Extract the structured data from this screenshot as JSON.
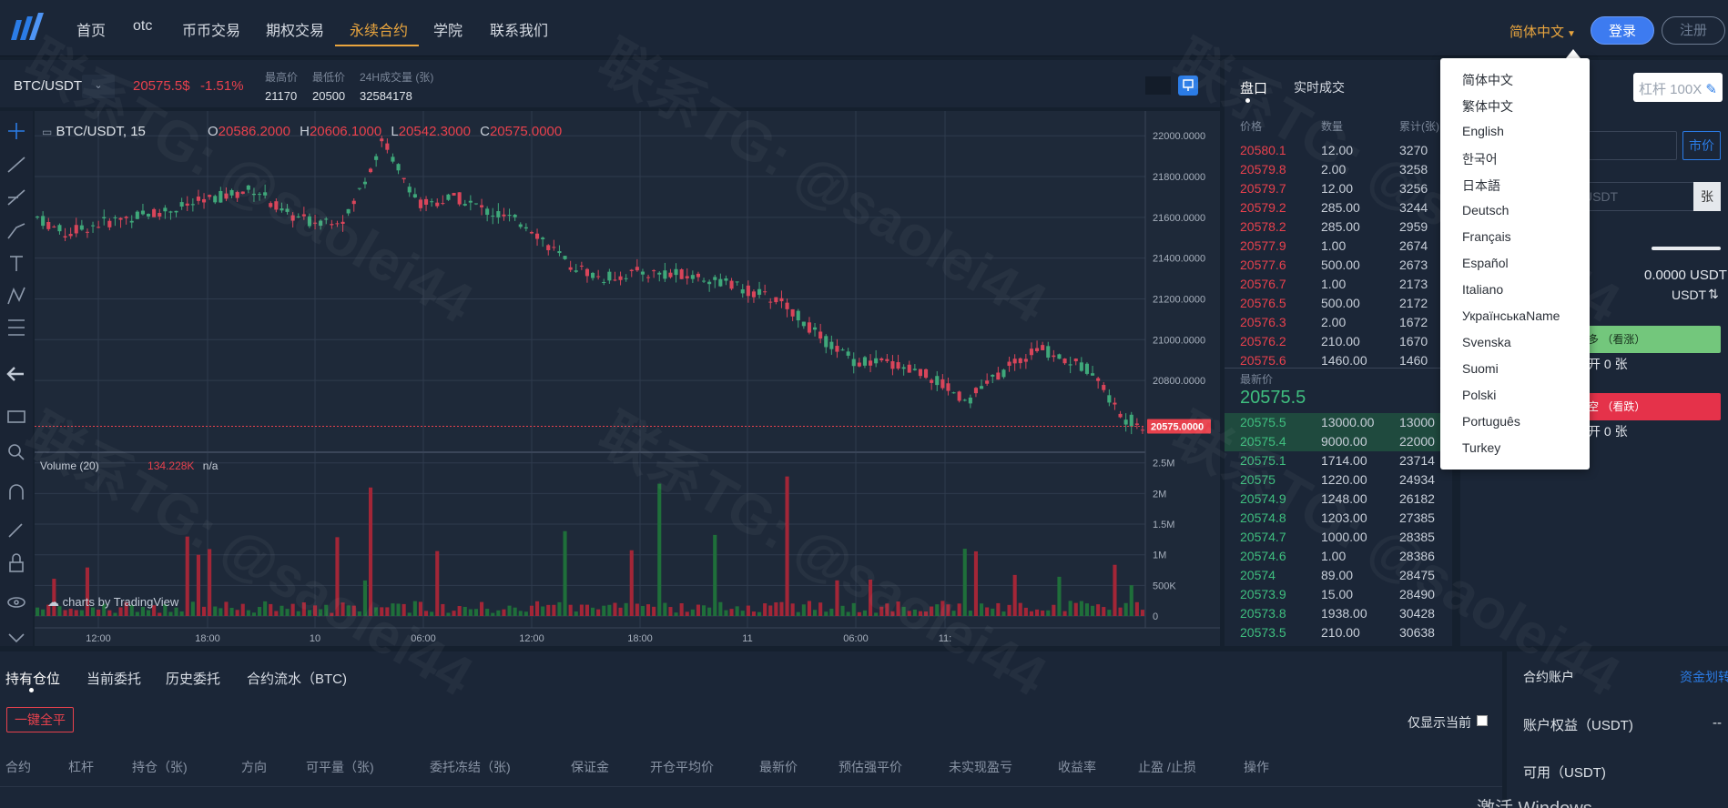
{
  "header": {
    "nav": [
      "首页",
      "otc",
      "币币交易",
      "期权交易",
      "永续合约",
      "学院",
      "联系我们"
    ],
    "active_nav": 4,
    "language": "简体中文",
    "login": "登录",
    "register": "注册"
  },
  "ticker": {
    "pair": "BTC/USDT",
    "last_price": "20575.5$",
    "change": "-1.51%",
    "high_label": "最高价",
    "high": "21170",
    "low_label": "最低价",
    "low": "20500",
    "vol_label": "24H成交量 (张)",
    "vol": "32584178"
  },
  "chart": {
    "legend_pair": "BTC/USDT, 15",
    "o_label": "O",
    "o": "20586.2000",
    "h_label": "H",
    "h": "20606.1000",
    "l_label": "L",
    "l": "20542.3000",
    "c_label": "C",
    "c": "20575.0000",
    "volume_label": "Volume (20)",
    "volume_val": "134.228K",
    "volume_na": "n/a",
    "price_ticks": [
      "22000.0000",
      "21800.0000",
      "21600.0000",
      "21400.0000",
      "21200.0000",
      "21000.0000",
      "20800.0000"
    ],
    "current_price_tag": "20575.0000",
    "vol_ticks": [
      "2.5M",
      "2M",
      "1.5M",
      "1M",
      "500K",
      "0"
    ],
    "time_ticks": [
      "12:00",
      "18:00",
      "10",
      "06:00",
      "12:00",
      "18:00",
      "11",
      "06:00",
      "11:"
    ],
    "watermark_logo": "charts by TradingView"
  },
  "orderbook": {
    "tab_book": "盘口",
    "tab_trades": "实时成交",
    "col_price": "价格",
    "col_qty": "数量",
    "col_total": "累计(张)",
    "asks": [
      [
        "20580.1",
        "12.00",
        "3270"
      ],
      [
        "20579.8",
        "2.00",
        "3258"
      ],
      [
        "20579.7",
        "12.00",
        "3256"
      ],
      [
        "20579.2",
        "285.00",
        "3244"
      ],
      [
        "20578.2",
        "285.00",
        "2959"
      ],
      [
        "20577.9",
        "1.00",
        "2674"
      ],
      [
        "20577.6",
        "500.00",
        "2673"
      ],
      [
        "20576.7",
        "1.00",
        "2173"
      ],
      [
        "20576.5",
        "500.00",
        "2172"
      ],
      [
        "20576.3",
        "2.00",
        "1672"
      ],
      [
        "20576.2",
        "210.00",
        "1670"
      ],
      [
        "20575.6",
        "1460.00",
        "1460"
      ]
    ],
    "latest_label": "最新价",
    "latest": "20575.5",
    "bids": [
      [
        "20575.5",
        "13000.00",
        "13000"
      ],
      [
        "20575.4",
        "9000.00",
        "22000"
      ],
      [
        "20575.1",
        "1714.00",
        "23714"
      ],
      [
        "20575",
        "1220.00",
        "24934"
      ],
      [
        "20574.9",
        "1248.00",
        "26182"
      ],
      [
        "20574.8",
        "1203.00",
        "27385"
      ],
      [
        "20574.7",
        "1000.00",
        "28385"
      ],
      [
        "20574.6",
        "1.00",
        "28386"
      ],
      [
        "20574",
        "89.00",
        "28475"
      ],
      [
        "20573.9",
        "15.00",
        "28490"
      ],
      [
        "20573.8",
        "1938.00",
        "30428"
      ],
      [
        "20573.5",
        "210.00",
        "30638"
      ]
    ]
  },
  "form": {
    "leverage": "杠杆 100X",
    "market_price": "市价",
    "unit_suffix": "USDT",
    "unit_btn": "张",
    "avail": "0.0000 USDT",
    "usdt_label": "USDT",
    "long_btn": "多 （看涨）",
    "long_open": "开 0 张",
    "short_btn": "空 （看跌）",
    "short_open": "开 0 张"
  },
  "lang_menu": [
    "简体中文",
    "繁体中文",
    "English",
    "한국어",
    "日本語",
    "Deutsch",
    "Français",
    "Español",
    "Italiano",
    "УкраїнськаName",
    "Svenska",
    "Suomi",
    "Polski",
    "Português",
    "Turkey"
  ],
  "bottom": {
    "tabs": [
      "持有仓位",
      "当前委托",
      "历史委托",
      "合约流水（BTC)"
    ],
    "close_all": "一键全平",
    "only_current": "仅显示当前",
    "columns": [
      "合约",
      "杠杆",
      "持仓（张)",
      "方向",
      "可平量（张)",
      "委托冻结（张)",
      "保证金",
      "开仓平均价",
      "最新价",
      "预估强平价",
      "未实现盈亏",
      "收益率",
      "止盈 /止损",
      "操作"
    ]
  },
  "account": {
    "title": "合约账户",
    "transfer": "资金划转",
    "equity_label": "账户权益（USDT)",
    "equity_val": "--",
    "avail_label": "可用（USDT)"
  },
  "os_watermark": "激活 Windows",
  "overlay_watermark": "联系TG: @saolei44"
}
